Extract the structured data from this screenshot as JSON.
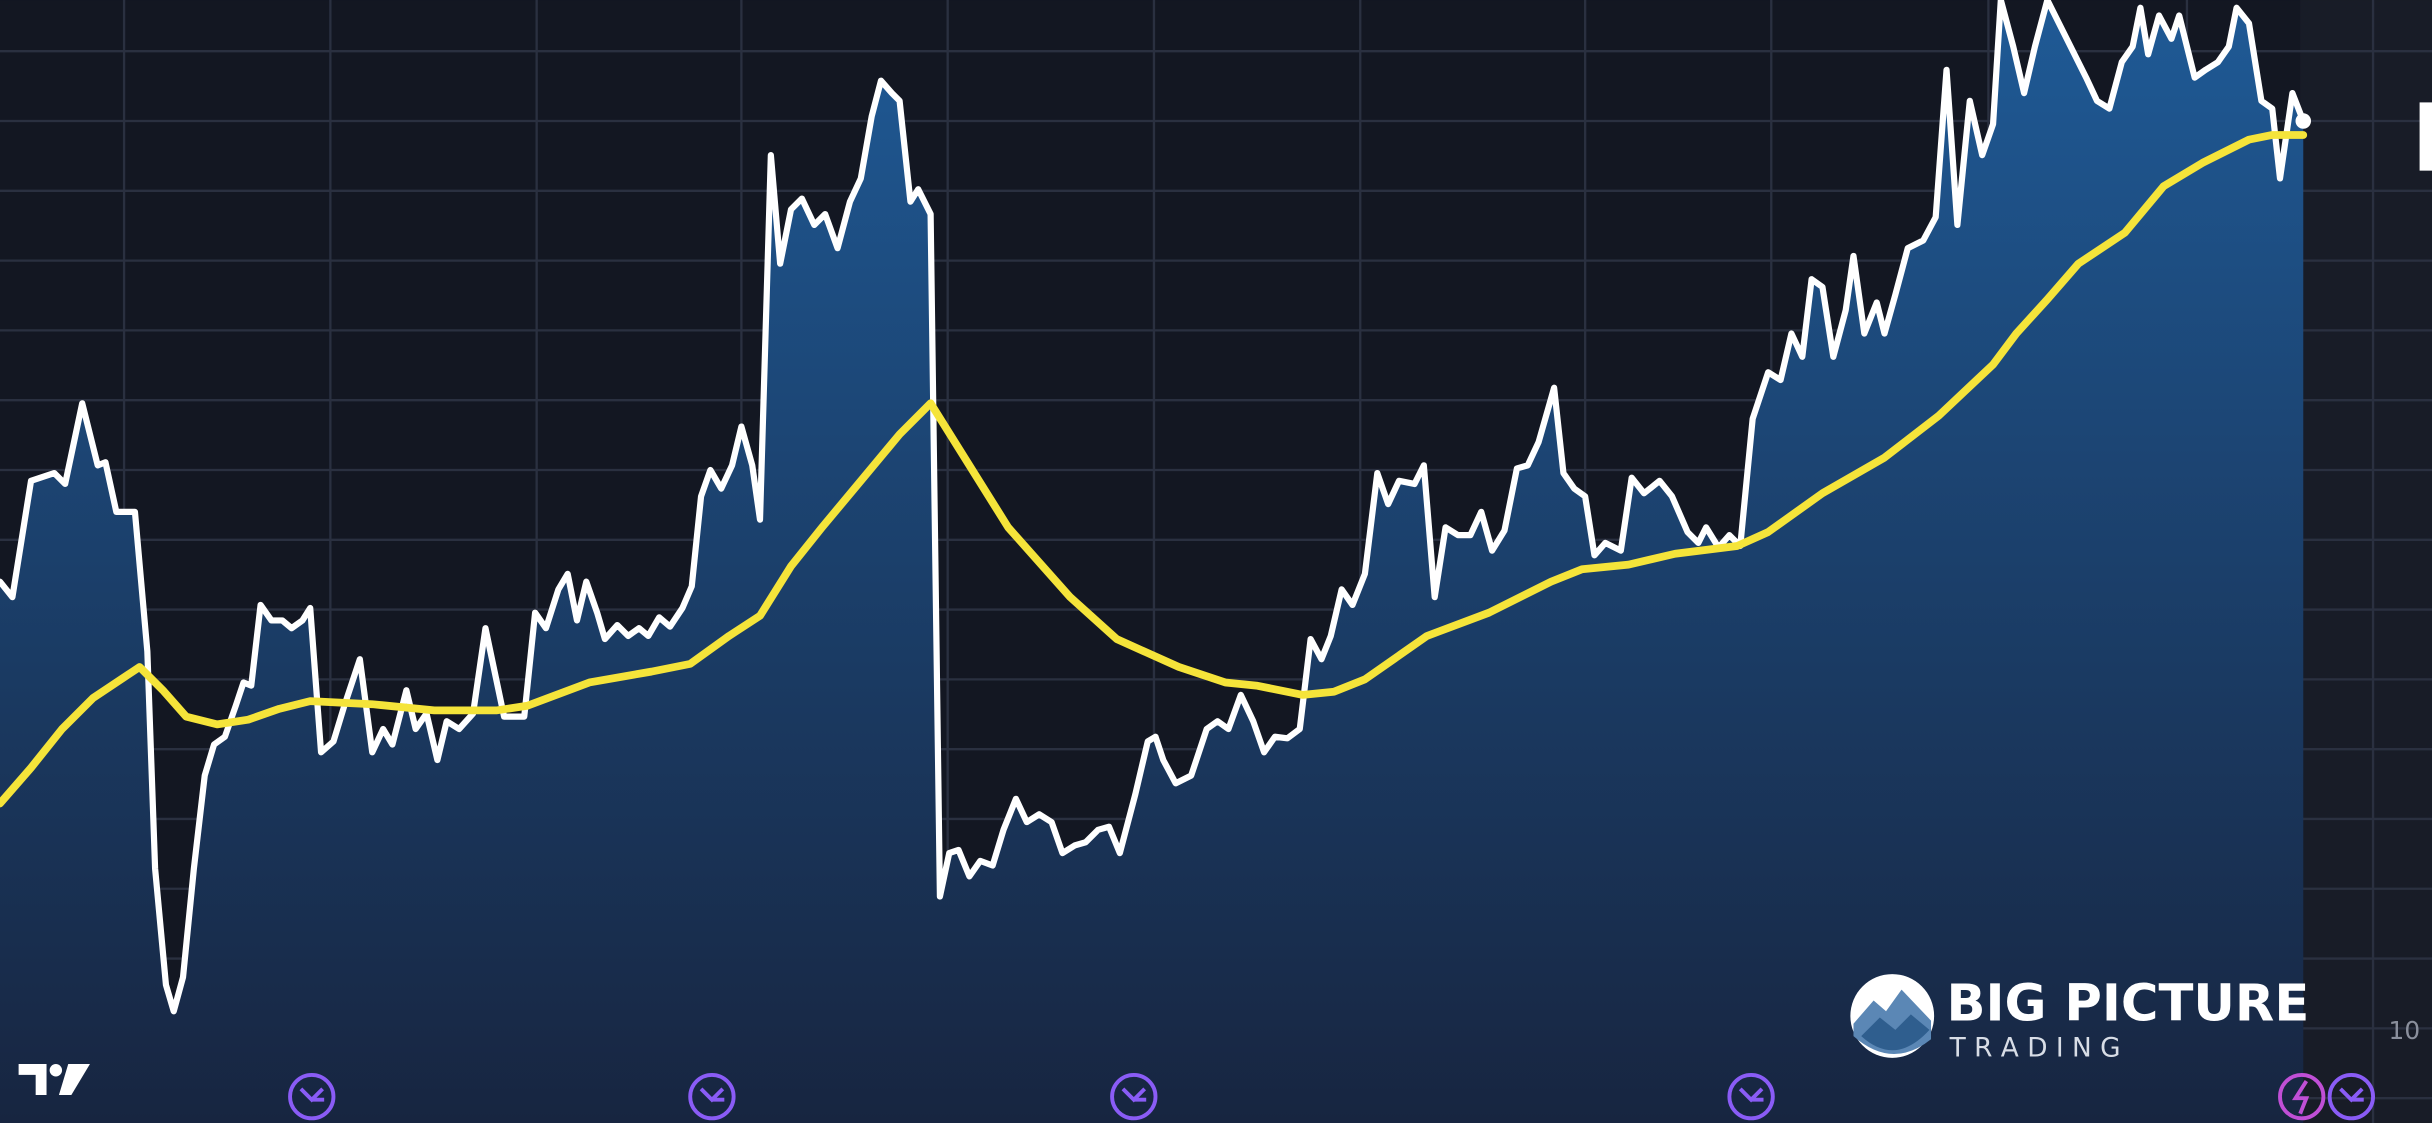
{
  "chart_data": {
    "type": "line",
    "grid": true,
    "xlim": [
      0,
      1568
    ],
    "xticks": [
      80,
      213,
      346,
      478,
      611,
      744,
      877,
      1022,
      1142,
      1282,
      1410,
      1530
    ],
    "ylim": [
      -16,
      708
    ],
    "yticks": [
      0,
      45,
      90,
      135,
      180,
      225,
      270,
      315,
      360,
      405,
      450,
      495,
      540,
      585,
      630,
      675
    ],
    "series": [
      {
        "color": "#ffffff",
        "fill": true,
        "x": [
          0,
          8,
          20,
          35,
          42,
          53,
          63,
          68,
          75,
          87,
          95,
          100,
          107,
          112,
          118,
          125,
          132,
          138,
          145,
          152,
          157,
          162,
          168,
          175,
          182,
          188,
          195,
          200,
          207,
          215,
          222,
          232,
          240,
          247,
          253,
          262,
          268,
          275,
          282,
          288,
          296,
          305,
          313,
          325,
          338,
          345,
          352,
          360,
          366,
          372,
          378,
          385,
          390,
          398,
          405,
          412,
          418,
          425,
          432,
          440,
          446,
          452,
          458,
          465,
          472,
          478,
          485,
          490,
          497,
          503,
          510,
          517,
          525,
          532,
          540,
          548,
          555,
          562,
          568,
          575,
          580,
          587,
          592,
          600,
          606,
          612,
          618,
          625,
          632,
          640,
          647,
          655,
          662,
          670,
          678,
          685,
          693,
          700,
          708,
          715,
          722,
          732,
          740,
          745,
          750,
          758,
          768,
          778,
          785,
          792,
          800,
          808,
          815,
          822,
          830,
          838,
          845,
          852,
          858,
          865,
          872,
          880,
          888,
          895,
          902,
          912,
          918,
          925,
          932,
          940,
          948,
          955,
          962,
          970,
          978,
          985,
          992,
          1002,
          1008,
          1015,
          1022,
          1028,
          1035,
          1045,
          1052,
          1060,
          1070,
          1078,
          1088,
          1095,
          1100,
          1108,
          1115,
          1122,
          1130,
          1140,
          1148,
          1155,
          1162,
          1168,
          1175,
          1182,
          1190,
          1195,
          1202,
          1210,
          1215,
          1222,
          1230,
          1240,
          1248,
          1255,
          1262,
          1270,
          1278,
          1285,
          1290,
          1298,
          1305,
          1312,
          1320,
          1345,
          1352,
          1360,
          1368,
          1375,
          1380,
          1385,
          1392,
          1400,
          1405,
          1415,
          1422,
          1430,
          1437,
          1442,
          1450,
          1458,
          1465,
          1470,
          1478,
          1485
        ],
        "values": [
          333,
          323,
          398,
          403,
          396,
          448,
          408,
          410,
          378,
          378,
          288,
          148,
          73,
          56,
          78,
          148,
          208,
          228,
          233,
          253,
          268,
          266,
          318,
          308,
          308,
          303,
          308,
          316,
          223,
          230,
          253,
          283,
          223,
          238,
          228,
          263,
          238,
          248,
          218,
          243,
          238,
          248,
          303,
          246,
          246,
          313,
          303,
          328,
          338,
          308,
          333,
          313,
          296,
          305,
          298,
          303,
          298,
          310,
          304,
          316,
          330,
          388,
          405,
          393,
          408,
          433,
          408,
          373,
          608,
          538,
          573,
          580,
          563,
          570,
          548,
          578,
          593,
          633,
          656,
          648,
          643,
          578,
          586,
          570,
          130,
          158,
          160,
          143,
          153,
          150,
          173,
          193,
          178,
          183,
          178,
          158,
          163,
          165,
          173,
          175,
          158,
          196,
          230,
          233,
          218,
          203,
          208,
          238,
          243,
          238,
          260,
          243,
          223,
          233,
          232,
          238,
          296,
          283,
          298,
          328,
          318,
          338,
          403,
          383,
          398,
          396,
          408,
          323,
          368,
          363,
          363,
          378,
          353,
          366,
          406,
          408,
          423,
          458,
          403,
          393,
          388,
          350,
          358,
          353,
          400,
          390,
          398,
          388,
          365,
          358,
          368,
          355,
          363,
          356,
          438,
          468,
          463,
          493,
          478,
          528,
          523,
          478,
          508,
          543,
          493,
          513,
          493,
          518,
          548,
          553,
          568,
          663,
          563,
          643,
          608,
          628,
          708,
          678,
          648,
          678,
          708,
          658,
          643,
          638,
          668,
          678,
          703,
          673,
          698,
          683,
          698,
          658,
          663,
          668,
          678,
          703,
          693,
          643,
          638,
          593,
          648,
          630
        ]
      },
      {
        "color": "#f5e43a",
        "fill": false,
        "x": [
          0,
          20,
          40,
          60,
          90,
          105,
          120,
          140,
          160,
          180,
          200,
          240,
          280,
          320,
          340,
          380,
          420,
          445,
          470,
          490,
          510,
          530,
          555,
          580,
          600,
          620,
          650,
          690,
          720,
          760,
          790,
          810,
          840,
          860,
          880,
          920,
          960,
          1000,
          1020,
          1050,
          1080,
          1120,
          1140,
          1175,
          1215,
          1250,
          1285,
          1300,
          1320,
          1340,
          1370,
          1395,
          1420,
          1450,
          1465,
          1485
        ],
        "values": [
          190,
          213,
          238,
          258,
          278,
          263,
          246,
          241,
          244,
          251,
          256,
          254,
          250,
          250,
          253,
          268,
          275,
          280,
          298,
          311,
          343,
          368,
          398,
          428,
          448,
          416,
          368,
          323,
          296,
          278,
          268,
          266,
          260,
          262,
          270,
          298,
          313,
          333,
          341,
          344,
          351,
          356,
          365,
          390,
          413,
          440,
          473,
          493,
          515,
          538,
          558,
          588,
          603,
          618,
          621,
          621
        ]
      }
    ],
    "right_label": "10",
    "logo": {
      "title": "BIG PICTURE",
      "subtitle": "T R A D I N G"
    }
  }
}
